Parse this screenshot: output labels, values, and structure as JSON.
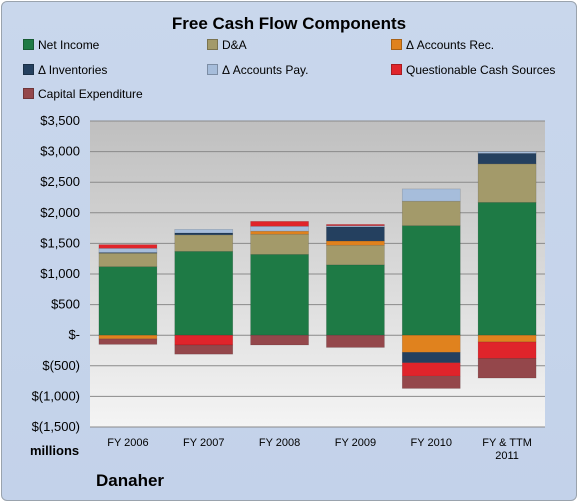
{
  "chart_data": {
    "type": "bar",
    "stacked": true,
    "title": "Free Cash Flow Components",
    "categories": [
      "FY 2006",
      "FY 2007",
      "FY 2008",
      "FY 2009",
      "FY 2010",
      "FY & TTM 2011"
    ],
    "ylim": [
      -1500,
      3500
    ],
    "yticks": [
      {
        "value": 3500,
        "label": "$3,500"
      },
      {
        "value": 3000,
        "label": "$3,000"
      },
      {
        "value": 2500,
        "label": "$2,500"
      },
      {
        "value": 2000,
        "label": "$2,000"
      },
      {
        "value": 1500,
        "label": "$1,500"
      },
      {
        "value": 1000,
        "label": "$1,000"
      },
      {
        "value": 500,
        "label": "$500"
      },
      {
        "value": 0,
        "label": "$-"
      },
      {
        "value": -500,
        "label": "$(500)"
      },
      {
        "value": -1000,
        "label": "$(1,000)"
      },
      {
        "value": -1500,
        "label": "$(1,500)"
      }
    ],
    "grid": true,
    "legend_position": "top",
    "series": [
      {
        "name": "Net Income",
        "color": "#1e7a45",
        "values": [
          1120,
          1370,
          1320,
          1150,
          1790,
          2170
        ]
      },
      {
        "name": "D&A",
        "color": "#a39a6a",
        "values": [
          220,
          270,
          330,
          320,
          400,
          630
        ]
      },
      {
        "name": "Δ Accounts Rec.",
        "color": "#e0821e",
        "values": [
          -60,
          0,
          50,
          70,
          -280,
          -110
        ]
      },
      {
        "name": "Δ Inventories",
        "color": "#24405f",
        "values": [
          10,
          30,
          0,
          230,
          -170,
          170
        ]
      },
      {
        "name": "Δ Accounts Pay.",
        "color": "#a6bddb",
        "values": [
          70,
          60,
          80,
          20,
          200,
          30
        ]
      },
      {
        "name": "Questionable Cash Sources",
        "color": "#e0242b",
        "values": [
          60,
          -160,
          80,
          20,
          -220,
          -270
        ]
      },
      {
        "name": "Capital Expenditure",
        "color": "#94474b",
        "values": [
          -90,
          -150,
          -160,
          -200,
          -200,
          -320
        ]
      }
    ]
  },
  "footer": {
    "units": "millions",
    "company": "Danaher"
  }
}
